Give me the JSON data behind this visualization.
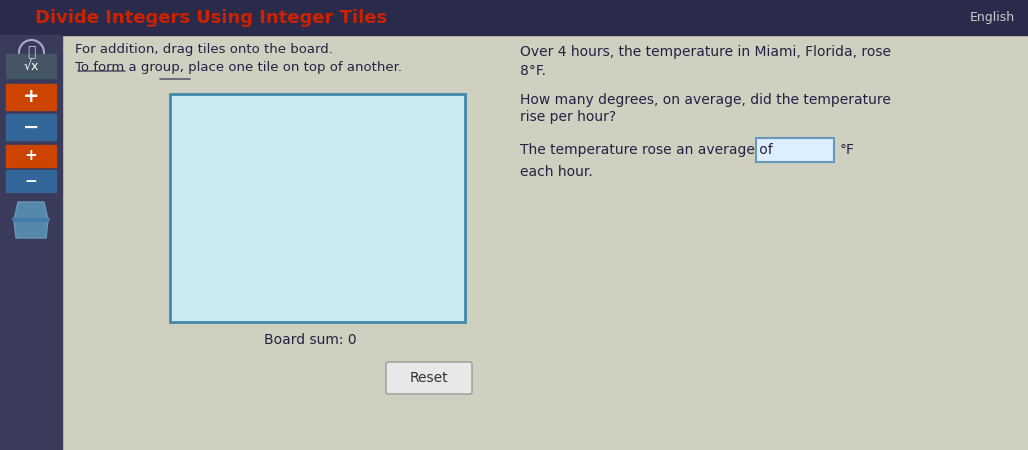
{
  "title": "Divide Integers Using Integer Tiles",
  "title_color": "#cc2200",
  "header_bg": "#2a2a4a",
  "body_bg": "#d0d0c0",
  "instruction_line1": "For addition, drag tiles onto the board.",
  "instruction_line2": "To form a group, place one tile on top of another.",
  "problem_line1": "Over 4 hours, the temperature in Miami, Florida, rose",
  "problem_line2": "8°F.",
  "problem_line3": "How many degrees, on average, did the temperature",
  "problem_line4": "rise per hour?",
  "answer_line1": "The temperature rose an average of",
  "answer_unit": "°F",
  "answer_line2": "each hour.",
  "board_sum": "Board sum: 0",
  "reset_label": "Reset",
  "board_fill": "#c8eaf0",
  "board_border": "#4488aa",
  "tile_plus_color": "#cc4400",
  "tile_minus_color": "#336699",
  "input_box_color": "#ddeeff",
  "input_box_border": "#6699bb",
  "text_color": "#222244",
  "eng_label": "English",
  "sidebar_bg": "#3a3a5a"
}
